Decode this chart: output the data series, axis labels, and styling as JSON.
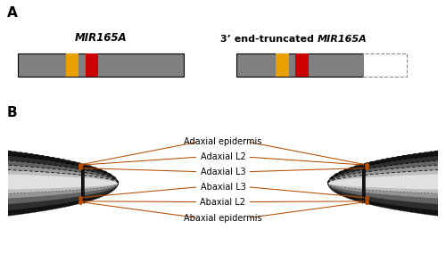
{
  "panel_A_label": "A",
  "panel_B_label": "B",
  "mir165a_label": "MIR165A",
  "truncated_label_normal": "3’ end-truncated ",
  "truncated_label_italic": "MIR165A",
  "bar_color": "#808080",
  "red_color": "#cc0000",
  "orange_color": "#e8a000",
  "dashed_box_color": "#888888",
  "annotation_color": "#b84c00",
  "black_color": "#111111",
  "layer_labels": [
    "Adaxial epidermis",
    "Adaxial L2",
    "Adaxial L3",
    "Abaxial L3",
    "Abaxial L2",
    "Abaxial epidermis"
  ],
  "background_color": "#ffffff",
  "fig_width": 5.0,
  "fig_height": 2.85,
  "fig_dpi": 100
}
